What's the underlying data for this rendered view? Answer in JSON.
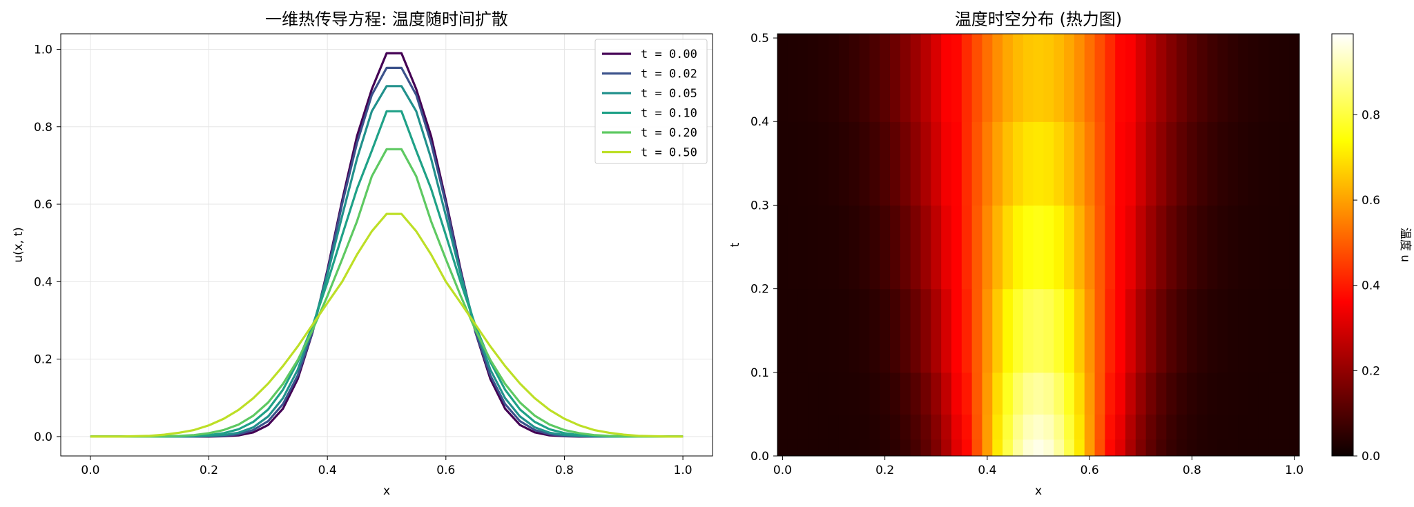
{
  "chart_data": [
    {
      "type": "line",
      "title": "一维热传导方程: 温度随时间扩散",
      "xlabel": "x",
      "ylabel": "u(x, t)",
      "xlim": [
        -0.05,
        1.05
      ],
      "ylim": [
        -0.05,
        1.04
      ],
      "xticks": [
        "0.0",
        "0.2",
        "0.4",
        "0.6",
        "0.8",
        "1.0"
      ],
      "yticks": [
        "0.0",
        "0.2",
        "0.4",
        "0.6",
        "0.8",
        "1.0"
      ],
      "grid": true,
      "legend_position": "top-right",
      "x": [
        0.0,
        0.025,
        0.05,
        0.075,
        0.1,
        0.125,
        0.15,
        0.175,
        0.2,
        0.225,
        0.25,
        0.275,
        0.3,
        0.325,
        0.35,
        0.375,
        0.4,
        0.425,
        0.45,
        0.475,
        0.5,
        0.525,
        0.55,
        0.575,
        0.6,
        0.625,
        0.65,
        0.675,
        0.7,
        0.725,
        0.75,
        0.775,
        0.8,
        0.825,
        0.85,
        0.875,
        0.9,
        0.925,
        0.95,
        0.975,
        1.0
      ],
      "series": [
        {
          "name": "t = 0.00",
          "color": "#440154",
          "values": [
            0.0,
            0.0,
            0.0,
            0.0,
            0.0,
            0.0,
            0.0,
            0.0,
            0.0,
            0.001,
            0.003,
            0.011,
            0.03,
            0.072,
            0.149,
            0.269,
            0.43,
            0.61,
            0.776,
            0.897,
            0.99,
            0.99,
            0.897,
            0.776,
            0.61,
            0.43,
            0.269,
            0.149,
            0.072,
            0.03,
            0.011,
            0.003,
            0.001,
            0.0,
            0.0,
            0.0,
            0.0,
            0.0,
            0.0,
            0.0,
            0.0
          ]
        },
        {
          "name": "t = 0.02",
          "color": "#3b528b",
          "values": [
            0.0,
            0.0,
            0.0,
            0.0,
            0.0,
            0.0,
            0.0,
            0.0,
            0.001,
            0.002,
            0.006,
            0.017,
            0.04,
            0.084,
            0.158,
            0.27,
            0.424,
            0.601,
            0.758,
            0.882,
            0.952,
            0.952,
            0.882,
            0.758,
            0.601,
            0.424,
            0.27,
            0.158,
            0.084,
            0.04,
            0.017,
            0.006,
            0.002,
            0.001,
            0.0,
            0.0,
            0.0,
            0.0,
            0.0,
            0.0,
            0.0
          ]
        },
        {
          "name": "t = 0.05",
          "color": "#21918c",
          "values": [
            0.0,
            0.0,
            0.0,
            0.0,
            0.0,
            0.0,
            0.0,
            0.001,
            0.002,
            0.004,
            0.01,
            0.024,
            0.052,
            0.099,
            0.173,
            0.28,
            0.418,
            0.57,
            0.718,
            0.84,
            0.905,
            0.905,
            0.84,
            0.718,
            0.57,
            0.418,
            0.28,
            0.173,
            0.099,
            0.052,
            0.024,
            0.01,
            0.004,
            0.002,
            0.001,
            0.0,
            0.0,
            0.0,
            0.0,
            0.0,
            0.0
          ]
        },
        {
          "name": "t = 0.10",
          "color": "#1fa187",
          "values": [
            0.0,
            0.0,
            0.0,
            0.0,
            0.0,
            0.0,
            0.001,
            0.002,
            0.004,
            0.009,
            0.019,
            0.038,
            0.07,
            0.121,
            0.193,
            0.286,
            0.398,
            0.52,
            0.64,
            0.738,
            0.84,
            0.84,
            0.738,
            0.64,
            0.52,
            0.398,
            0.286,
            0.193,
            0.121,
            0.07,
            0.038,
            0.019,
            0.009,
            0.004,
            0.002,
            0.001,
            0.0,
            0.0,
            0.0,
            0.0,
            0.0
          ]
        },
        {
          "name": "t = 0.20",
          "color": "#5ec962",
          "values": [
            0.0,
            0.0,
            0.0,
            0.0,
            0.0,
            0.001,
            0.002,
            0.004,
            0.009,
            0.017,
            0.031,
            0.054,
            0.088,
            0.136,
            0.198,
            0.275,
            0.363,
            0.458,
            0.556,
            0.672,
            0.742,
            0.742,
            0.672,
            0.556,
            0.458,
            0.363,
            0.275,
            0.198,
            0.136,
            0.088,
            0.054,
            0.031,
            0.017,
            0.009,
            0.004,
            0.002,
            0.001,
            0.0,
            0.0,
            0.0,
            0.0
          ]
        },
        {
          "name": "t = 0.50",
          "color": "#bddf26",
          "values": [
            0.0,
            0.0,
            0.0,
            0.001,
            0.002,
            0.005,
            0.01,
            0.017,
            0.029,
            0.046,
            0.069,
            0.099,
            0.137,
            0.182,
            0.233,
            0.289,
            0.345,
            0.4,
            0.47,
            0.53,
            0.575,
            0.575,
            0.53,
            0.47,
            0.4,
            0.345,
            0.289,
            0.233,
            0.182,
            0.137,
            0.099,
            0.069,
            0.046,
            0.029,
            0.017,
            0.01,
            0.005,
            0.002,
            0.001,
            0.0,
            0.0
          ]
        }
      ]
    },
    {
      "type": "heatmap",
      "title": "温度时空分布 (热力图)",
      "xlabel": "x",
      "ylabel": "t",
      "xlim": [
        -0.01,
        1.01
      ],
      "ylim": [
        0,
        0.505
      ],
      "xticks": [
        "0.0",
        "0.2",
        "0.4",
        "0.6",
        "0.8",
        "1.0"
      ],
      "yticks": [
        "0.0",
        "0.1",
        "0.2",
        "0.3",
        "0.4",
        "0.5"
      ],
      "colormap": "hot",
      "colorbar_label": "温度 u",
      "colorbar_ticks": [
        "0.0",
        "0.2",
        "0.4",
        "0.6",
        "0.8"
      ],
      "colorbar_range": [
        0,
        0.99
      ],
      "x_cells": 51,
      "t_samples": [
        0.0,
        0.02,
        0.05,
        0.1,
        0.2,
        0.3,
        0.4,
        0.505
      ]
    }
  ],
  "colorbar": {
    "label": "温度 u"
  }
}
